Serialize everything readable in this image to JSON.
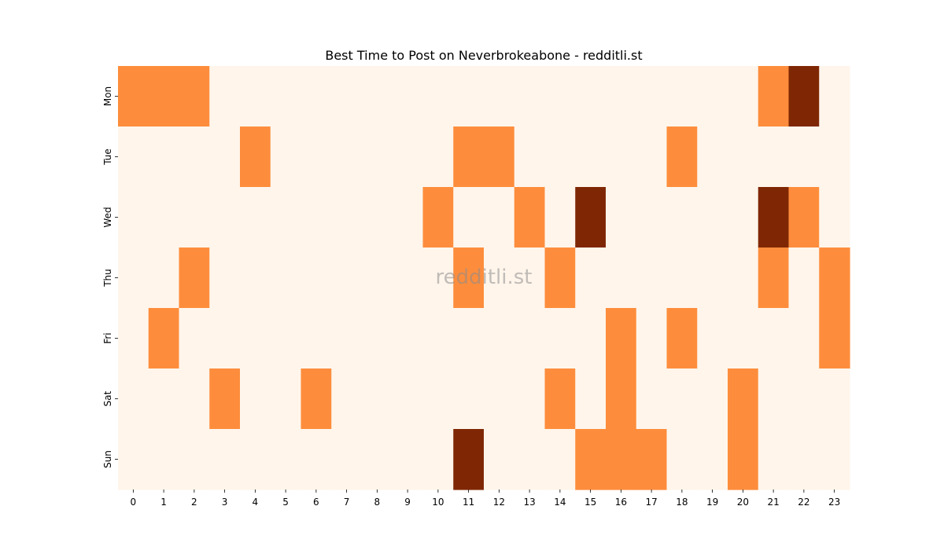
{
  "chart_data": {
    "type": "heatmap",
    "title": "Best Time to Post on Neverbrokeabone - redditli.st",
    "xlabel": "",
    "ylabel": "",
    "x_categories": [
      "0",
      "1",
      "2",
      "3",
      "4",
      "5",
      "6",
      "7",
      "8",
      "9",
      "10",
      "11",
      "12",
      "13",
      "14",
      "15",
      "16",
      "17",
      "18",
      "19",
      "20",
      "21",
      "22",
      "23"
    ],
    "y_categories": [
      "Mon",
      "Tue",
      "Wed",
      "Thu",
      "Fri",
      "Sat",
      "Sun"
    ],
    "values": [
      [
        1,
        1,
        1,
        0,
        0,
        0,
        0,
        0,
        0,
        0,
        0,
        0,
        0,
        0,
        0,
        0,
        0,
        0,
        0,
        0,
        0,
        1,
        2,
        0
      ],
      [
        0,
        0,
        0,
        0,
        1,
        0,
        0,
        0,
        0,
        0,
        0,
        1,
        1,
        0,
        0,
        0,
        0,
        0,
        1,
        0,
        0,
        0,
        0,
        0
      ],
      [
        0,
        0,
        0,
        0,
        0,
        0,
        0,
        0,
        0,
        0,
        1,
        0,
        0,
        1,
        0,
        2,
        0,
        0,
        0,
        0,
        0,
        2,
        1,
        0
      ],
      [
        0,
        0,
        1,
        0,
        0,
        0,
        0,
        0,
        0,
        0,
        0,
        1,
        0,
        0,
        1,
        0,
        0,
        0,
        0,
        0,
        0,
        1,
        0,
        1
      ],
      [
        0,
        1,
        0,
        0,
        0,
        0,
        0,
        0,
        0,
        0,
        0,
        0,
        0,
        0,
        0,
        0,
        1,
        0,
        1,
        0,
        0,
        0,
        0,
        1
      ],
      [
        0,
        0,
        0,
        1,
        0,
        0,
        1,
        0,
        0,
        0,
        0,
        0,
        0,
        0,
        1,
        0,
        1,
        0,
        0,
        0,
        1,
        0,
        0,
        0
      ],
      [
        0,
        0,
        0,
        0,
        0,
        0,
        0,
        0,
        0,
        0,
        0,
        2,
        0,
        0,
        0,
        1,
        1,
        1,
        0,
        0,
        1,
        0,
        0,
        0
      ]
    ],
    "colormap": "Oranges",
    "level_colors": [
      "#fff5eb",
      "#fd8d3c",
      "#7f2704"
    ],
    "colorbar": false,
    "watermark": "redditli.st"
  }
}
